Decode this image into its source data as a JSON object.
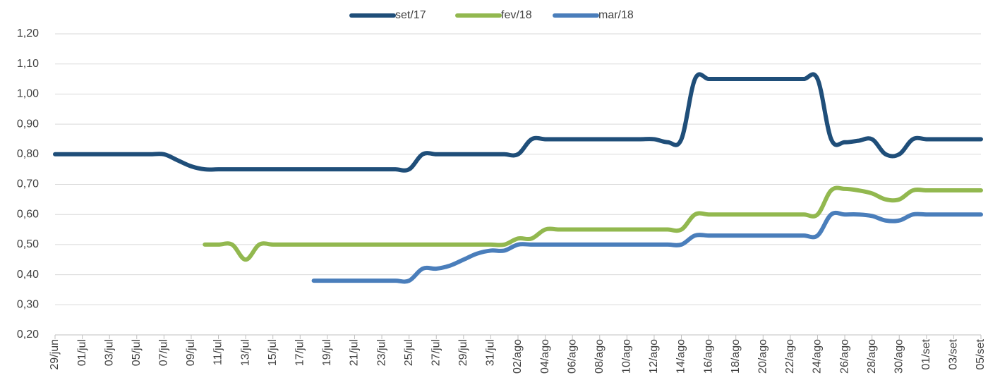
{
  "chart_data": {
    "type": "line",
    "categories": [
      "29/jun",
      null,
      "01/jul",
      null,
      "03/jul",
      null,
      "05/jul",
      null,
      "07/jul",
      null,
      "09/jul",
      null,
      "11/jul",
      null,
      "13/jul",
      null,
      "15/jul",
      null,
      "17/jul",
      null,
      "19/jul",
      null,
      "21/jul",
      null,
      "23/jul",
      null,
      "25/jul",
      null,
      "27/jul",
      null,
      "29/jul",
      null,
      "31/jul",
      null,
      "02/ago",
      null,
      "04/ago",
      null,
      "06/ago",
      null,
      "08/ago",
      null,
      "10/ago",
      null,
      "12/ago",
      null,
      "14/ago",
      null,
      "16/ago",
      null,
      "18/ago",
      null,
      "20/ago",
      null,
      "22/ago",
      null,
      "24/ago",
      null,
      "26/ago",
      null,
      "28/ago",
      null,
      "30/ago",
      null,
      "01/set",
      null,
      "03/set",
      null,
      "05/set"
    ],
    "series": [
      {
        "name": "set/17",
        "color": "#1f4e79",
        "values": [
          0.8,
          0.8,
          0.8,
          0.8,
          0.8,
          0.8,
          0.8,
          0.8,
          0.8,
          0.78,
          0.76,
          0.75,
          0.75,
          0.75,
          0.75,
          0.75,
          0.75,
          0.75,
          0.75,
          0.75,
          0.75,
          0.75,
          0.75,
          0.75,
          0.75,
          0.75,
          0.75,
          0.8,
          0.8,
          0.8,
          0.8,
          0.8,
          0.8,
          0.8,
          0.8,
          0.85,
          0.85,
          0.85,
          0.85,
          0.85,
          0.85,
          0.85,
          0.85,
          0.85,
          0.85,
          0.84,
          0.85,
          1.05,
          1.05,
          1.05,
          1.05,
          1.05,
          1.05,
          1.05,
          1.05,
          1.05,
          1.05,
          0.85,
          0.84,
          0.845,
          0.85,
          0.8,
          0.8,
          0.85,
          0.85,
          0.85,
          0.85,
          0.85,
          0.85
        ]
      },
      {
        "name": "fev/18",
        "color": "#92b84f",
        "values": [
          null,
          null,
          null,
          null,
          null,
          null,
          null,
          null,
          null,
          null,
          null,
          0.5,
          0.5,
          0.5,
          0.45,
          0.5,
          0.5,
          0.5,
          0.5,
          0.5,
          0.5,
          0.5,
          0.5,
          0.5,
          0.5,
          0.5,
          0.5,
          0.5,
          0.5,
          0.5,
          0.5,
          0.5,
          0.5,
          0.5,
          0.52,
          0.52,
          0.55,
          0.55,
          0.55,
          0.55,
          0.55,
          0.55,
          0.55,
          0.55,
          0.55,
          0.55,
          0.55,
          0.6,
          0.6,
          0.6,
          0.6,
          0.6,
          0.6,
          0.6,
          0.6,
          0.6,
          0.6,
          0.68,
          0.685,
          0.68,
          0.67,
          0.65,
          0.65,
          0.68,
          0.68,
          0.68,
          0.68,
          0.68,
          0.68
        ]
      },
      {
        "name": "mar/18",
        "color": "#4a7ebb",
        "values": [
          null,
          null,
          null,
          null,
          null,
          null,
          null,
          null,
          null,
          null,
          null,
          null,
          null,
          null,
          null,
          null,
          null,
          null,
          null,
          0.38,
          0.38,
          0.38,
          0.38,
          0.38,
          0.38,
          0.38,
          0.38,
          0.42,
          0.42,
          0.43,
          0.45,
          0.47,
          0.48,
          0.48,
          0.5,
          0.5,
          0.5,
          0.5,
          0.5,
          0.5,
          0.5,
          0.5,
          0.5,
          0.5,
          0.5,
          0.5,
          0.5,
          0.53,
          0.53,
          0.53,
          0.53,
          0.53,
          0.53,
          0.53,
          0.53,
          0.53,
          0.53,
          0.6,
          0.6,
          0.6,
          0.595,
          0.58,
          0.58,
          0.6,
          0.6,
          0.6,
          0.6,
          0.6,
          0.6
        ]
      }
    ],
    "ylim": [
      0.2,
      1.2
    ],
    "yticks": [
      {
        "value": 0.2,
        "label": "0,20"
      },
      {
        "value": 0.3,
        "label": "0,30"
      },
      {
        "value": 0.4,
        "label": "0,40"
      },
      {
        "value": 0.5,
        "label": "0,50"
      },
      {
        "value": 0.6,
        "label": "0,60"
      },
      {
        "value": 0.7,
        "label": "0,70"
      },
      {
        "value": 0.8,
        "label": "0,80"
      },
      {
        "value": 0.9,
        "label": "0,90"
      },
      {
        "value": 1.0,
        "label": "1,00"
      },
      {
        "value": 1.1,
        "label": "1,10"
      },
      {
        "value": 1.2,
        "label": "1,20"
      }
    ],
    "grid": true,
    "legend": "top"
  }
}
